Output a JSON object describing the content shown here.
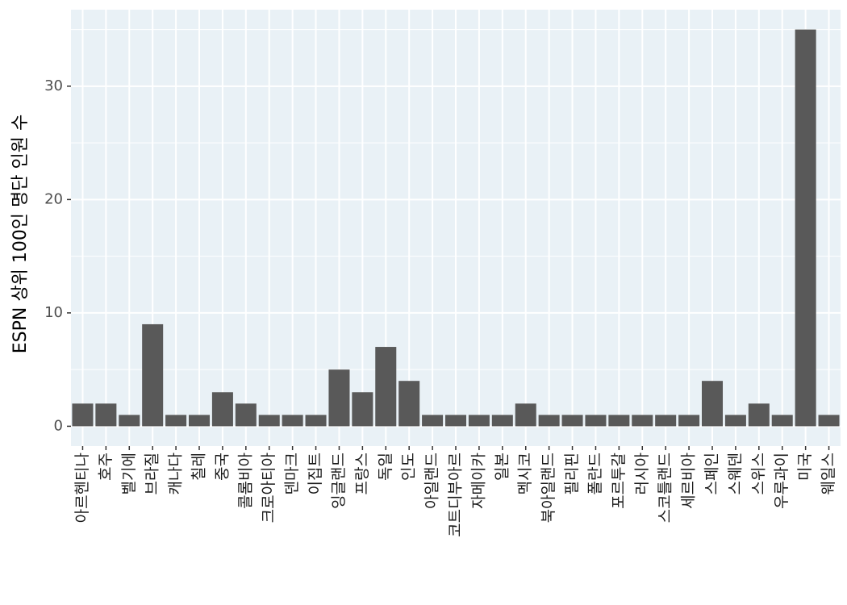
{
  "chart_data": {
    "type": "bar",
    "y_label": "ESPN 상위 100인 명단 인원 수",
    "categories": [
      "아르헨티나",
      "호주",
      "벨기에",
      "브라질",
      "캐나다",
      "칠레",
      "중국",
      "콜롬비아",
      "크로아티아",
      "덴마크",
      "이집트",
      "잉글랜드",
      "프랑스",
      "독일",
      "인도",
      "아일랜드",
      "코트디부아르",
      "자메이카",
      "일본",
      "멕시코",
      "북아일랜드",
      "필리핀",
      "폴란드",
      "포르투갈",
      "러시아",
      "스코틀랜드",
      "세르비아",
      "스페인",
      "스웨덴",
      "스위스",
      "우루과이",
      "미국",
      "웨일스"
    ],
    "values": [
      2,
      2,
      1,
      9,
      1,
      1,
      3,
      2,
      1,
      1,
      1,
      5,
      3,
      7,
      4,
      1,
      1,
      1,
      1,
      2,
      1,
      1,
      1,
      1,
      1,
      1,
      1,
      4,
      1,
      2,
      1,
      35,
      1
    ],
    "color": "#595959",
    "ylim": [
      -1.75,
      36.75
    ],
    "yticks": [
      0,
      10,
      20,
      30
    ],
    "grid": true
  }
}
